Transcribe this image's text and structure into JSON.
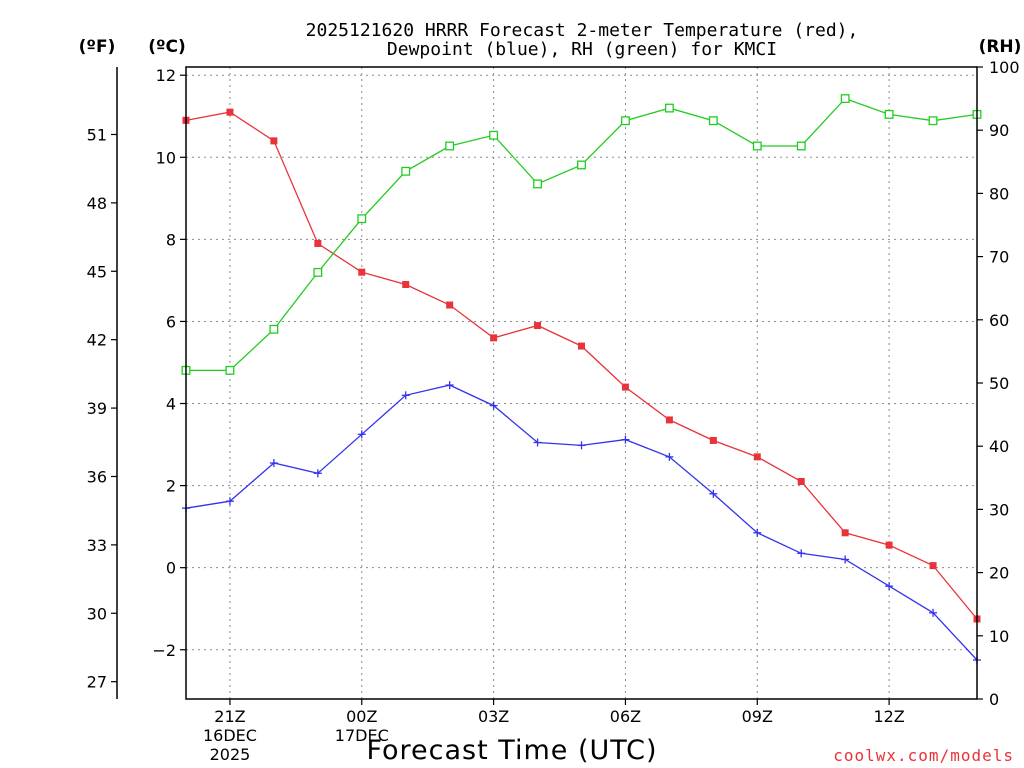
{
  "chart_data": {
    "type": "line",
    "title_lines": [
      "2025121620 HRRR Forecast 2-meter Temperature (red),",
      "Dewpoint (blue), RH (green) for KMCI"
    ],
    "xlabel": "Forecast Time (UTC)",
    "credit": "coolwx.com/models",
    "units": {
      "f": "(ºF)",
      "c": "(ºC)",
      "rh": "(RH)"
    },
    "x": [
      20,
      21,
      22,
      23,
      24,
      25,
      26,
      27,
      28,
      29,
      30,
      31,
      32,
      33,
      34,
      35,
      36,
      37,
      38
    ],
    "xlim": [
      20,
      38
    ],
    "x_ticks": [
      {
        "x": 21,
        "lines": [
          "21Z",
          "16DEC",
          "2025"
        ]
      },
      {
        "x": 24,
        "lines": [
          "00Z",
          "17DEC"
        ]
      },
      {
        "x": 27,
        "lines": [
          "03Z"
        ]
      },
      {
        "x": 30,
        "lines": [
          "06Z"
        ]
      },
      {
        "x": 33,
        "lines": [
          "09Z"
        ]
      },
      {
        "x": 36,
        "lines": [
          "12Z"
        ]
      }
    ],
    "left_axis_c": {
      "ylim": [
        -3.2,
        12.2
      ],
      "ticks": [
        -2,
        0,
        2,
        4,
        6,
        8,
        10,
        12
      ],
      "tick_labels": [
        "−2",
        "0",
        "2",
        "4",
        "6",
        "8",
        "10",
        "12"
      ]
    },
    "f_axis": {
      "ticks": [
        27,
        30,
        33,
        36,
        39,
        42,
        45,
        48,
        51
      ]
    },
    "rh_axis": {
      "ylim": [
        0,
        100
      ],
      "ticks": [
        0,
        10,
        20,
        30,
        40,
        50,
        60,
        70,
        80,
        90,
        100
      ]
    },
    "series": [
      {
        "name": "2-meter Temperature",
        "color": "#e8333a",
        "marker": "filled-square",
        "axis": "c",
        "values": [
          10.9,
          11.1,
          10.4,
          7.9,
          7.2,
          6.9,
          6.4,
          5.6,
          5.9,
          5.4,
          4.4,
          3.6,
          3.1,
          2.7,
          2.1,
          0.85,
          0.55,
          0.05,
          -1.25
        ]
      },
      {
        "name": "Dewpoint",
        "color": "#3333ee",
        "marker": "plus",
        "axis": "c",
        "values": [
          1.45,
          1.62,
          2.55,
          2.3,
          3.25,
          4.2,
          4.45,
          3.95,
          3.05,
          2.98,
          3.12,
          2.7,
          1.8,
          0.85,
          0.35,
          0.2,
          -0.45,
          -1.1,
          -2.25
        ]
      },
      {
        "name": "RH",
        "color": "#22cc22",
        "marker": "open-square",
        "axis": "rh",
        "values": [
          52,
          52,
          58.5,
          67.5,
          76,
          83.5,
          87.5,
          89.2,
          81.5,
          84.5,
          91.5,
          93.5,
          91.5,
          87.5,
          87.5,
          95,
          92.5,
          91.5,
          92.5
        ]
      }
    ]
  }
}
